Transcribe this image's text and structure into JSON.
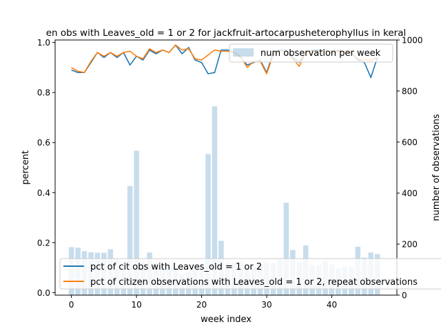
{
  "chart_data": {
    "type": "bar+line",
    "title": "en obs with Leaves_old = 1 or 2 for jackfruit-artocarpusheterophyllus in keral",
    "xlabel": "week index",
    "ylabel_left": "percent",
    "ylabel_right": "number of observations",
    "xlim": [
      -2.5,
      50.0
    ],
    "ylim_left": [
      -0.01,
      1.01
    ],
    "ylim_right": [
      0,
      1000
    ],
    "xticks": [
      0,
      10,
      20,
      30,
      40
    ],
    "yticks_left": [
      "0.0",
      "0.2",
      "0.4",
      "0.6",
      "0.8",
      "1.0"
    ],
    "yticks_right": [
      "0",
      "200",
      "400",
      "600",
      "800",
      "1000"
    ],
    "bars": {
      "name": "num observation per week",
      "color": "#1f77b4",
      "x": [
        0,
        1,
        2,
        3,
        4,
        5,
        6,
        7,
        8,
        9,
        10,
        11,
        12,
        13,
        14,
        15,
        16,
        17,
        18,
        19,
        20,
        21,
        22,
        23,
        24,
        25,
        26,
        27,
        28,
        29,
        30,
        31,
        32,
        33,
        34,
        35,
        36,
        37,
        38,
        39,
        40,
        41,
        42,
        43,
        44,
        45,
        46,
        47
      ],
      "values": [
        188,
        186,
        172,
        168,
        166,
        166,
        180,
        140,
        130,
        428,
        566,
        130,
        167,
        128,
        110,
        110,
        108,
        80,
        90,
        100,
        110,
        553,
        740,
        213,
        128,
        128,
        133,
        115,
        110,
        115,
        128,
        125,
        140,
        362,
        177,
        130,
        195,
        118,
        117,
        137,
        120,
        105,
        110,
        110,
        190,
        147,
        167,
        161
      ]
    },
    "series": [
      {
        "name": "pct of cit obs with Leaves_old = 1 or 2",
        "color": "#1f77b4",
        "x": [
          0,
          1,
          2,
          3,
          4,
          5,
          6,
          7,
          8,
          9,
          10,
          11,
          12,
          13,
          14,
          15,
          16,
          17,
          18,
          19,
          20,
          21,
          22,
          23,
          24,
          25,
          26,
          27,
          28,
          29,
          30,
          31,
          32,
          33,
          34,
          35,
          36,
          37,
          38,
          39,
          40,
          41,
          42,
          43,
          44,
          45,
          46,
          47
        ],
        "values": [
          0.89,
          0.88,
          0.88,
          0.92,
          0.96,
          0.94,
          0.96,
          0.94,
          0.96,
          0.91,
          0.945,
          0.93,
          0.97,
          0.955,
          0.97,
          0.96,
          0.99,
          0.955,
          0.98,
          0.93,
          0.92,
          0.875,
          0.88,
          0.97,
          0.97,
          0.96,
          0.94,
          0.91,
          0.92,
          0.93,
          0.88,
          0.96,
          0.97,
          0.97,
          0.94,
          0.92,
          0.96,
          0.97,
          0.97,
          0.97,
          0.96,
          0.97,
          0.96,
          0.96,
          0.93,
          0.92,
          0.86,
          0.94
        ]
      },
      {
        "name": "pct of citizen observations with Leaves_old = 1 or 2, repeat observations",
        "color": "#ff7f0e",
        "x": [
          0,
          1,
          2,
          3,
          4,
          5,
          6,
          7,
          8,
          9,
          10,
          11,
          12,
          13,
          14,
          15,
          16,
          17,
          18,
          19,
          20,
          21,
          22,
          23,
          24,
          25,
          26,
          27,
          28,
          29,
          30,
          31,
          32,
          33,
          34,
          35,
          36,
          37,
          38,
          39,
          40,
          41,
          42,
          43,
          44,
          45,
          46,
          47
        ],
        "values": [
          0.9,
          0.885,
          0.88,
          0.925,
          0.96,
          0.945,
          0.96,
          0.945,
          0.96,
          0.965,
          0.945,
          0.935,
          0.975,
          0.96,
          0.97,
          0.96,
          0.99,
          0.97,
          0.975,
          0.935,
          0.93,
          0.95,
          0.97,
          0.965,
          0.965,
          0.96,
          0.945,
          0.9,
          0.925,
          0.925,
          0.875,
          0.95,
          0.965,
          0.965,
          0.935,
          0.905,
          0.96,
          0.965,
          0.965,
          0.965,
          0.96,
          0.965,
          0.96,
          0.96,
          0.935,
          0.93,
          0.93,
          0.94
        ]
      }
    ],
    "legend_lines_position": "lower-right",
    "legend_bars_position": "upper-right",
    "grid": false
  }
}
